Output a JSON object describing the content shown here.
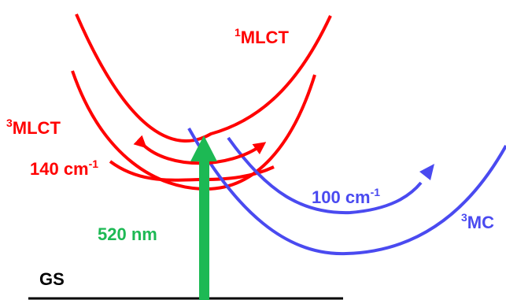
{
  "labels": {
    "singlet_mlct": {
      "sup": "1",
      "text": "MLCT"
    },
    "triplet_mlct": {
      "sup": "3",
      "text": "MLCT"
    },
    "triplet_mc": {
      "sup": "3",
      "text": "MC"
    },
    "ground_state": "GS",
    "excitation": "520 nm",
    "mlct_mode": {
      "text": "140 cm",
      "sup": "-1"
    },
    "mc_mode": {
      "text": "100 cm",
      "sup": "-1"
    }
  },
  "colors": {
    "mlct": "#ff0000",
    "mc": "#4a4af0",
    "excitation": "#1db954",
    "ground": "#000000"
  }
}
